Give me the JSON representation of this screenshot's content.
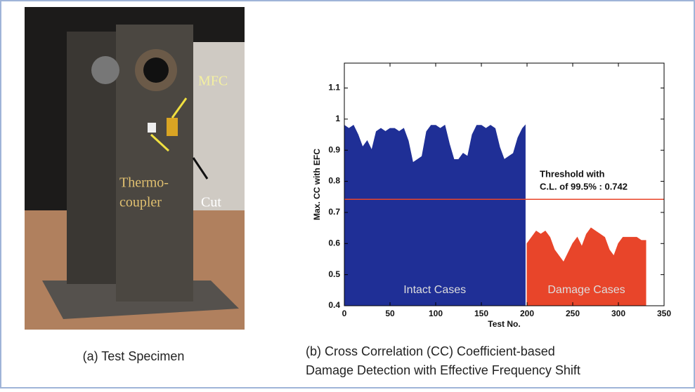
{
  "photo": {
    "labels": [
      "MFC",
      "Thermo-",
      "coupler",
      "Cut"
    ]
  },
  "captions": {
    "a": "(a) Test Specimen",
    "b": [
      "(b) Cross Correlation (CC) Coefficient-based",
      "Damage Detection with Effective Frequency Shift"
    ]
  },
  "chart_data": {
    "type": "area",
    "xlabel": "Test No.",
    "ylabel": "Max. CC with EFC",
    "xlim": [
      0,
      350
    ],
    "xticks": [
      0,
      50,
      100,
      150,
      200,
      250,
      300,
      350
    ],
    "ylim": [
      0.4,
      1.18
    ],
    "yticks": [
      0.4,
      0.5,
      0.6,
      0.7,
      0.8,
      0.9,
      1,
      1.1
    ],
    "threshold": 0.742,
    "threshold_color": "#e8452a",
    "annotations": [
      "Threshold with",
      "C.L. of 99.5% : 0.742"
    ],
    "series": [
      {
        "name": "Intact Cases",
        "color": "#1f2f96",
        "x": [
          0,
          5,
          10,
          15,
          20,
          25,
          30,
          35,
          40,
          45,
          50,
          55,
          60,
          65,
          70,
          75,
          80,
          85,
          90,
          95,
          100,
          105,
          110,
          115,
          120,
          125,
          130,
          135,
          140,
          145,
          150,
          155,
          160,
          165,
          170,
          175,
          180,
          185,
          190,
          195,
          198
        ],
        "values": [
          0.98,
          0.97,
          0.98,
          0.95,
          0.91,
          0.93,
          0.9,
          0.96,
          0.97,
          0.96,
          0.97,
          0.97,
          0.96,
          0.97,
          0.93,
          0.86,
          0.87,
          0.88,
          0.96,
          0.98,
          0.98,
          0.97,
          0.98,
          0.92,
          0.87,
          0.87,
          0.89,
          0.88,
          0.95,
          0.98,
          0.98,
          0.97,
          0.98,
          0.97,
          0.91,
          0.87,
          0.88,
          0.89,
          0.94,
          0.97,
          0.98
        ]
      },
      {
        "name": "Damage Cases",
        "color": "#e8452a",
        "x": [
          200,
          205,
          210,
          215,
          220,
          225,
          230,
          235,
          240,
          245,
          250,
          255,
          260,
          265,
          270,
          275,
          280,
          285,
          290,
          295,
          300,
          305,
          310,
          315,
          320,
          325,
          330
        ],
        "values": [
          0.6,
          0.62,
          0.64,
          0.63,
          0.64,
          0.62,
          0.58,
          0.56,
          0.54,
          0.57,
          0.6,
          0.62,
          0.59,
          0.63,
          0.65,
          0.64,
          0.63,
          0.62,
          0.58,
          0.56,
          0.6,
          0.62,
          0.62,
          0.62,
          0.62,
          0.61,
          0.61
        ]
      }
    ]
  }
}
